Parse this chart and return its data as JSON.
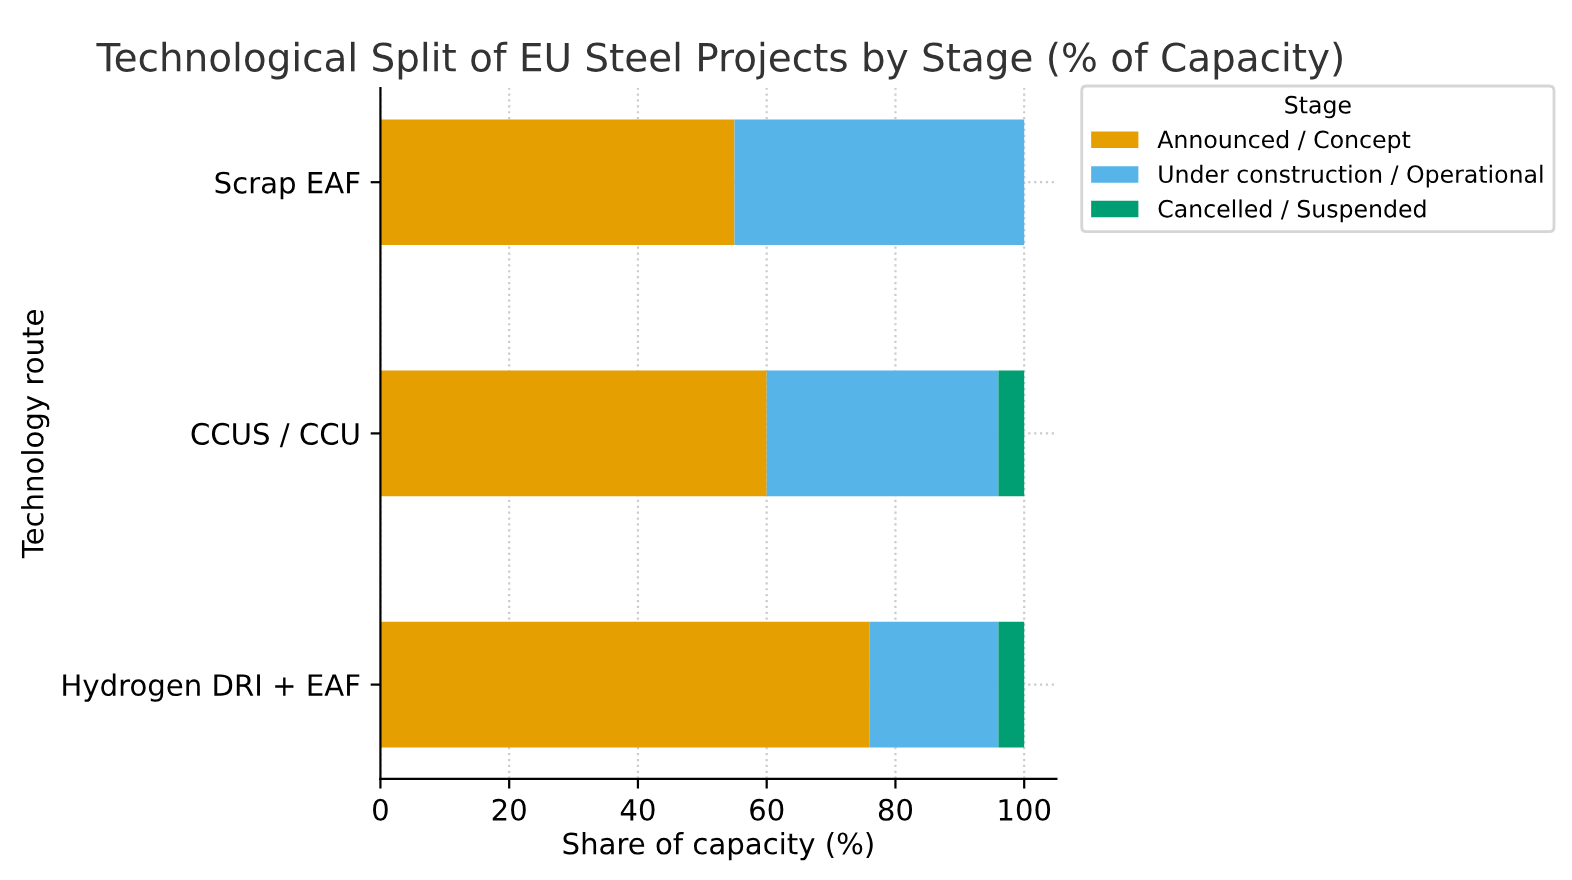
{
  "chart_data": {
    "type": "bar",
    "orientation": "horizontal",
    "stacked": true,
    "title": "Technological Split of EU Steel Projects by Stage (% of Capacity)",
    "xlabel": "Share of capacity (%)",
    "ylabel": "Technology route",
    "legend_title": "Stage",
    "categories": [
      "Scrap EAF",
      "CCUS / CCU",
      "Hydrogen DRI + EAF"
    ],
    "series": [
      {
        "name": "Announced / Concept",
        "color": "#e69f00",
        "values": [
          55,
          60,
          76
        ]
      },
      {
        "name": "Under construction / Operational",
        "color": "#56b4e9",
        "values": [
          45,
          36,
          20
        ]
      },
      {
        "name": "Cancelled / Suspended",
        "color": "#009e73",
        "values": [
          0,
          4,
          4
        ]
      }
    ],
    "xlim": [
      0,
      105
    ],
    "xticks": [
      0,
      20,
      40,
      60,
      80,
      100
    ],
    "grid": true,
    "legend": "top right"
  }
}
